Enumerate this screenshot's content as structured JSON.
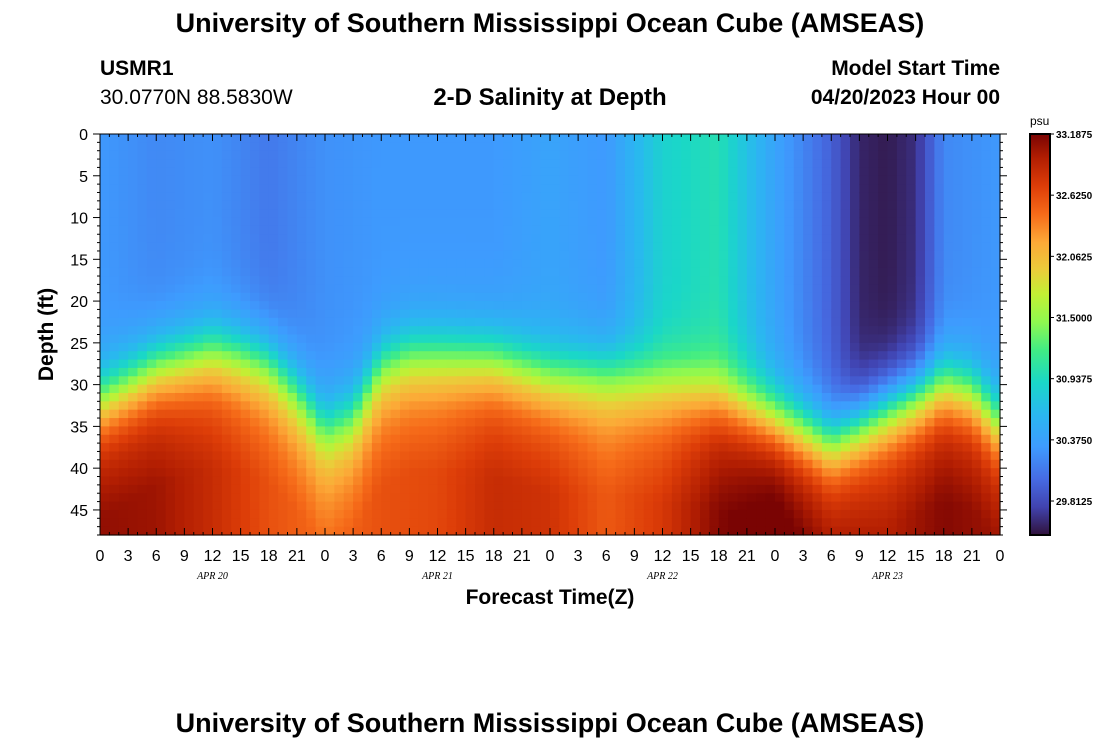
{
  "page": {
    "title": "University of Southern Mississippi Ocean Cube (AMSEAS)",
    "footer_title": "University of Southern Mississippi Ocean Cube (AMSEAS)",
    "station_id": "USMR1",
    "station_coords": "30.0770N  88.5830W",
    "subtitle": "2-D Salinity at Depth",
    "model_start_label": "Model Start Time",
    "model_start_value": "04/20/2023 Hour 00"
  },
  "chart_data": {
    "type": "heatmap",
    "title": "2-D Salinity at Depth",
    "xlabel": "Forecast Time(Z)",
    "ylabel": "Depth (ft)",
    "x_unit": "hours since 04/20/2023 00Z",
    "xlim": [
      0,
      96
    ],
    "ylim": [
      0,
      48
    ],
    "y_inverted": true,
    "x_ticks": [
      0,
      3,
      6,
      9,
      12,
      15,
      18,
      21,
      24,
      27,
      30,
      33,
      36,
      39,
      42,
      45,
      48,
      51,
      54,
      57,
      60,
      63,
      66,
      69,
      72,
      75,
      78,
      81,
      84,
      87,
      90,
      93,
      96
    ],
    "x_tick_labels": [
      "0",
      "3",
      "6",
      "9",
      "12",
      "15",
      "18",
      "21",
      "0",
      "3",
      "6",
      "9",
      "12",
      "15",
      "18",
      "21",
      "0",
      "3",
      "6",
      "9",
      "12",
      "15",
      "18",
      "21",
      "0",
      "3",
      "6",
      "9",
      "12",
      "15",
      "18",
      "21",
      "0"
    ],
    "date_labels": [
      {
        "hour": 12,
        "label": "APR 20"
      },
      {
        "hour": 36,
        "label": "APR 21"
      },
      {
        "hour": 60,
        "label": "APR 22"
      },
      {
        "hour": 84,
        "label": "APR 23"
      }
    ],
    "y_ticks": [
      0,
      5,
      10,
      15,
      20,
      25,
      30,
      35,
      40,
      45
    ],
    "y_tick_labels": [
      "0",
      "5",
      "10",
      "15",
      "20",
      "25",
      "30",
      "35",
      "40",
      "45"
    ],
    "colorbar": {
      "unit": "psu",
      "min": 29.5,
      "max": 33.1875,
      "labels": [
        "33.1875",
        "32.6250",
        "32.0625",
        "31.5000",
        "30.9375",
        "30.3750",
        "29.8125"
      ],
      "label_values": [
        33.1875,
        32.625,
        32.0625,
        31.5,
        30.9375,
        30.375,
        29.8125
      ]
    },
    "surface_salinity": {
      "hours": [
        0,
        6,
        12,
        18,
        24,
        30,
        36,
        42,
        48,
        54,
        60,
        66,
        72,
        78,
        81,
        84,
        87,
        90,
        96
      ],
      "values": [
        30.3,
        30.2,
        30.25,
        30.1,
        30.25,
        30.3,
        30.3,
        30.3,
        30.4,
        30.3,
        30.85,
        31.0,
        30.4,
        29.95,
        29.6,
        29.55,
        29.65,
        30.2,
        30.3
      ]
    },
    "halocline_depth_ft": {
      "hours": [
        0,
        6,
        12,
        15,
        18,
        21,
        24,
        27,
        30,
        33,
        36,
        42,
        48,
        54,
        60,
        66,
        72,
        78,
        84,
        90,
        93,
        96
      ],
      "values": [
        32,
        28,
        26,
        26.5,
        27.5,
        31,
        35.5,
        34,
        28,
        26.5,
        26.5,
        27,
        29,
        29,
        30,
        31,
        34,
        37,
        33,
        30,
        31,
        35
      ]
    },
    "bottom_salinity": {
      "hours": [
        0,
        6,
        12,
        18,
        24,
        30,
        36,
        42,
        48,
        54,
        60,
        66,
        72,
        78,
        84,
        90,
        96
      ],
      "values": [
        32.85,
        32.8,
        32.6,
        32.35,
        32.2,
        32.35,
        32.4,
        32.6,
        32.55,
        32.3,
        32.5,
        32.9,
        33.1,
        32.8,
        32.7,
        32.9,
        32.8
      ]
    }
  }
}
